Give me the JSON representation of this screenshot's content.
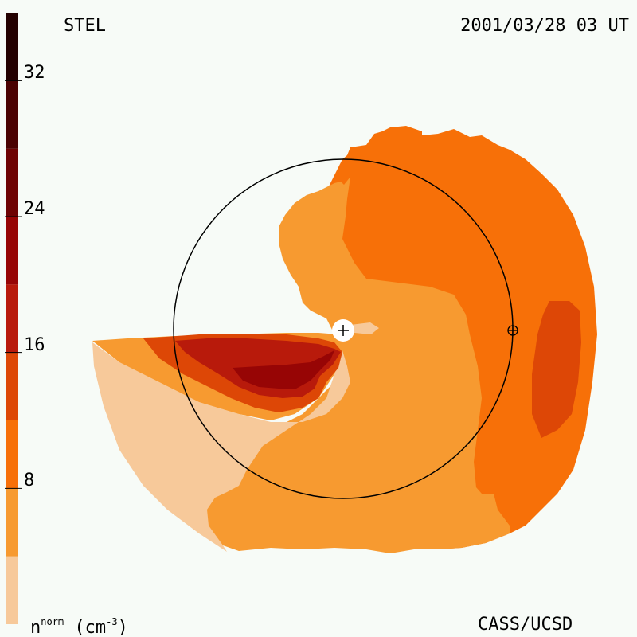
{
  "header": {
    "source": "STEL",
    "datetime": "2001/03/28 03 UT"
  },
  "footer": {
    "credit": "CASS/UCSD",
    "unit_base": "n",
    "unit_sup": "norm",
    "unit_suffix": " (cm",
    "unit_exp": "-3",
    "unit_close": ")"
  },
  "colorbar": {
    "min": 0,
    "max": 36,
    "bins": [
      {
        "from": 0,
        "to": 4,
        "color": "#f7c99a"
      },
      {
        "from": 4,
        "to": 8,
        "color": "#f79a30"
      },
      {
        "from": 8,
        "to": 12,
        "color": "#f77008"
      },
      {
        "from": 12,
        "to": 16,
        "color": "#dd4706"
      },
      {
        "from": 16,
        "to": 20,
        "color": "#b81a0b"
      },
      {
        "from": 20,
        "to": 24,
        "color": "#970505"
      },
      {
        "from": 24,
        "to": 28,
        "color": "#6e0303"
      },
      {
        "from": 28,
        "to": 32,
        "color": "#4a0202"
      },
      {
        "from": 32,
        "to": 36,
        "color": "#240101"
      }
    ],
    "tick_labels": [
      "8",
      "16",
      "24",
      "32"
    ]
  },
  "markers": {
    "sun_symbol": "+",
    "earth_symbol": "⊕"
  }
}
